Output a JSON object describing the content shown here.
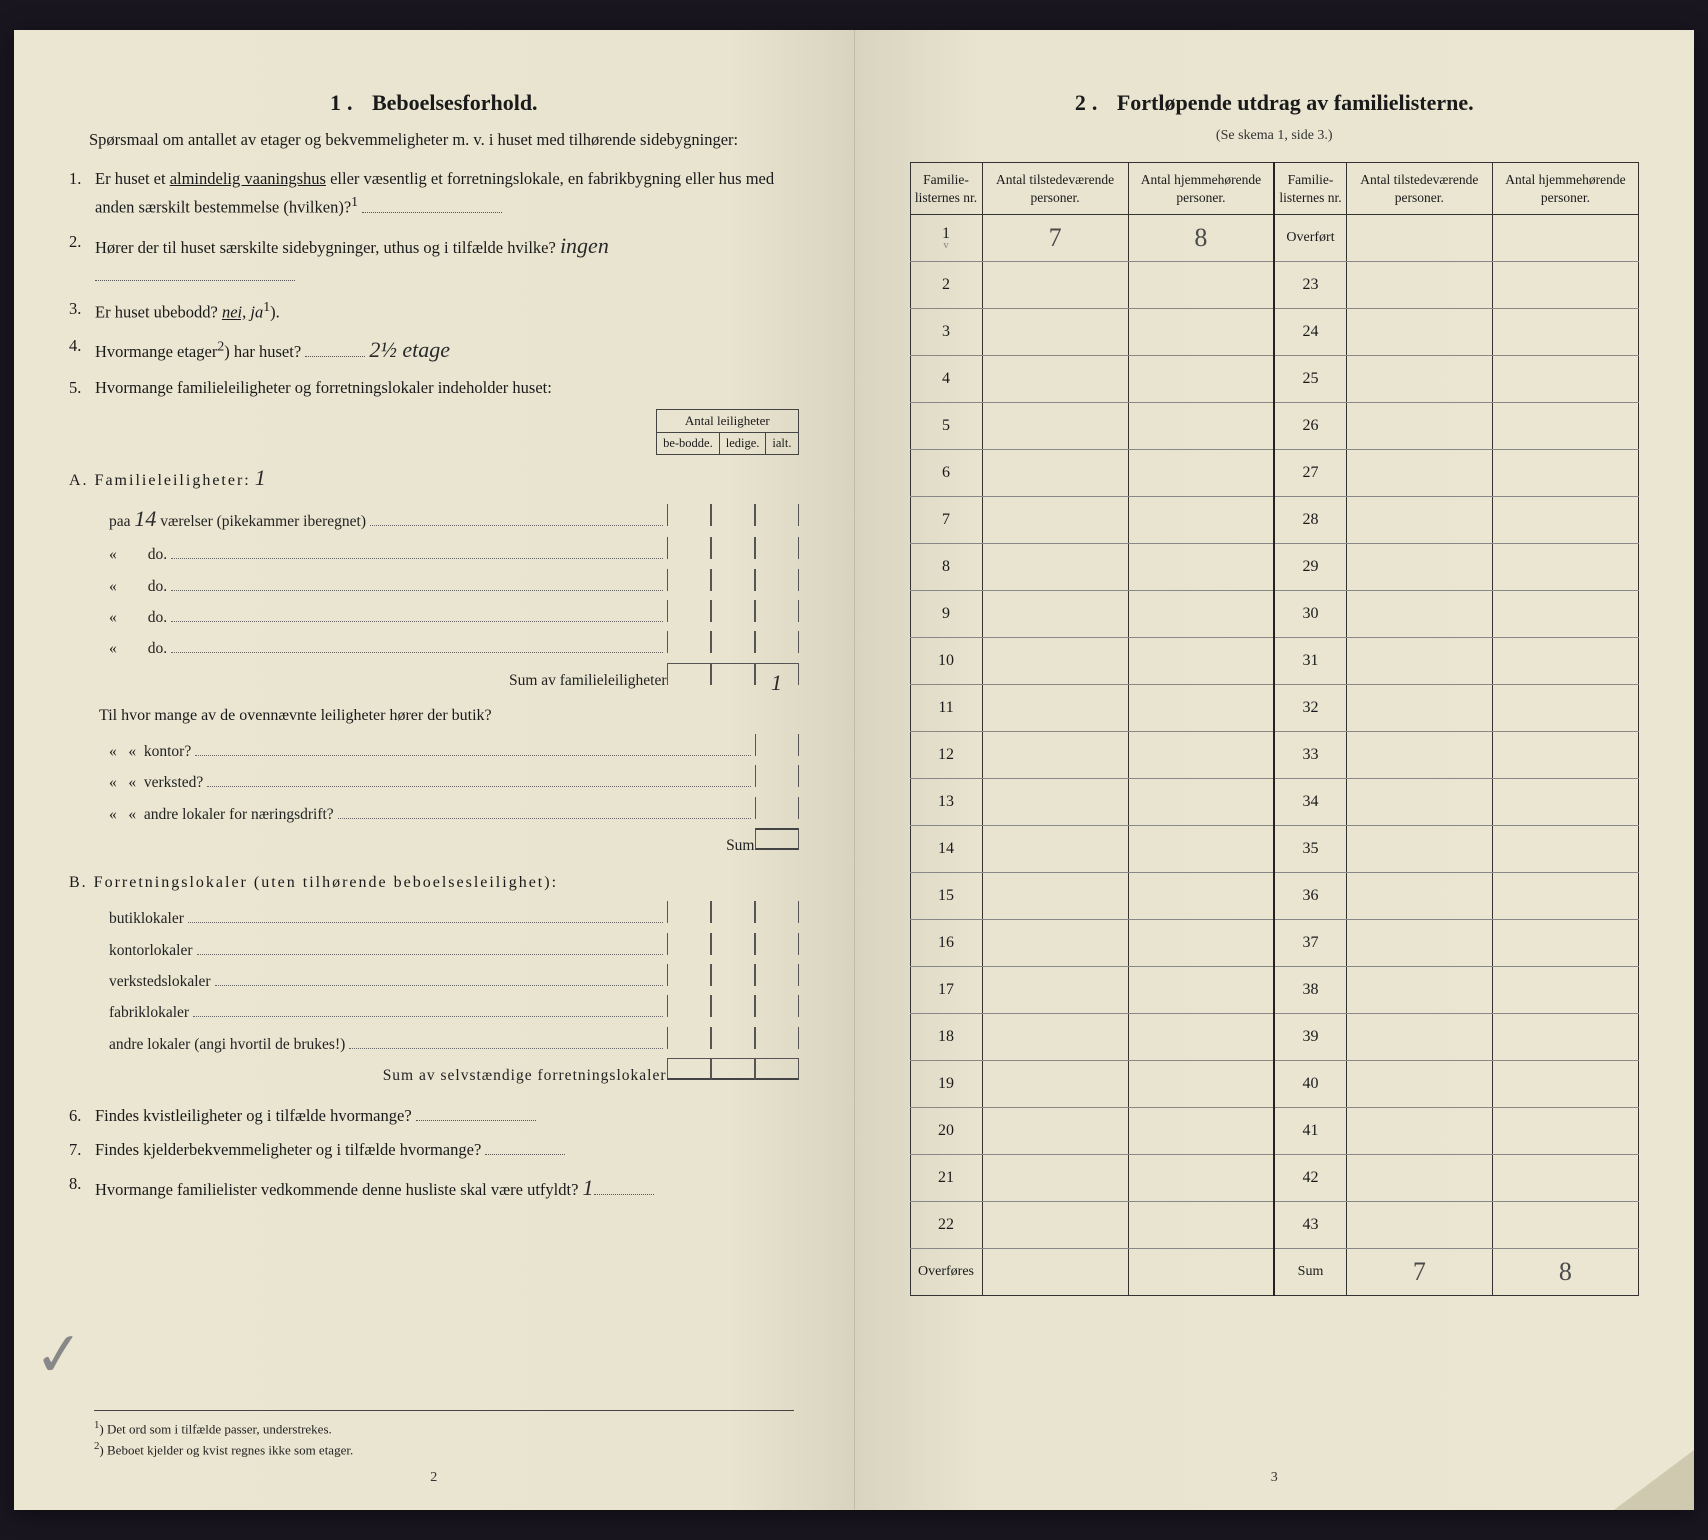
{
  "left": {
    "title_num": "1.",
    "title": "Beboelsesforhold.",
    "intro": "Spørsmaal om antallet av etager og bekvemmeligheter m. v. i huset med tilhørende sidebygninger:",
    "q1_num": "1.",
    "q1_a": "Er huset et ",
    "q1_u": "almindelig vaaningshus",
    "q1_b": " eller væsentlig et forretningslokale, en fabrikbygning eller hus med anden særskilt bestemmelse (hvilken)?",
    "q1_sup": "1",
    "q2_num": "2.",
    "q2": "Hører der til huset særskilte sidebygninger, uthus og i tilfælde hvilke?",
    "q2_ans": "ingen",
    "q3_num": "3.",
    "q3": "Er huset ubebodd?",
    "q3_nei": "nei,",
    "q3_ja": "ja",
    "q3_sup": "1",
    "q4_num": "4.",
    "q4": "Hvormange etager",
    "q4_sup": "2",
    "q4_b": ") har huset?",
    "q4_ans": "2½ etage",
    "q5_num": "5.",
    "q5": "Hvormange familieleiligheter og forretningslokaler indeholder huset:",
    "mini_hdr": "Antal leiligheter",
    "mini_c1": "be-bodde.",
    "mini_c2": "ledige.",
    "mini_c3": "ialt.",
    "A_label": "A. Familieleiligheter:",
    "A_count": "1",
    "A_row1_a": "paa",
    "A_row1_rooms": "14",
    "A_row1_b": "værelser (pikekammer iberegnet)",
    "A_do": "do.",
    "A_sum": "Sum av familieleiligheter",
    "A_sum_val": "1",
    "A_q": "Til hvor mange av de ovennævnte leiligheter hører der butik?",
    "A_q2": "kontor?",
    "A_q3": "verksted?",
    "A_q4": "andre lokaler for næringsdrift?",
    "A_sum2": "Sum",
    "B_label": "B. Forretningslokaler (uten tilhørende beboelsesleilighet):",
    "B_1": "butiklokaler",
    "B_2": "kontorlokaler",
    "B_3": "verkstedslokaler",
    "B_4": "fabriklokaler",
    "B_5": "andre lokaler (angi hvortil de brukes!)",
    "B_sum": "Sum av selvstændige forretningslokaler",
    "q6_num": "6.",
    "q6": "Findes kvistleiligheter og i tilfælde hvormange?",
    "q7_num": "7.",
    "q7": "Findes kjelderbekvemmeligheter og i tilfælde hvormange?",
    "q8_num": "8.",
    "q8": "Hvormange familielister vedkommende denne husliste skal være utfyldt?",
    "q8_ans": "1",
    "fn1_sup": "1",
    "fn1": ") Det ord som i tilfælde passer, understrekes.",
    "fn2_sup": "2",
    "fn2": ") Beboet kjelder og kvist regnes ikke som etager.",
    "page_num": "2"
  },
  "right": {
    "title_num": "2.",
    "title": "Fortløpende utdrag av familielisterne.",
    "subnote": "(Se skema 1, side 3.)",
    "hdr1": "Familie-listernes nr.",
    "hdr2": "Antal tilstedeværende personer.",
    "hdr3": "Antal hjemmehørende personer.",
    "overfort": "Overført",
    "overfores": "Overføres",
    "sum": "Sum",
    "row1_val1": "7",
    "row1_val2": "8",
    "sum_val1": "7",
    "sum_val2": "8",
    "left_nums": [
      "1",
      "2",
      "3",
      "4",
      "5",
      "6",
      "7",
      "8",
      "9",
      "10",
      "11",
      "12",
      "13",
      "14",
      "15",
      "16",
      "17",
      "18",
      "19",
      "20",
      "21",
      "22"
    ],
    "right_nums": [
      "23",
      "24",
      "25",
      "26",
      "27",
      "28",
      "29",
      "30",
      "31",
      "32",
      "33",
      "34",
      "35",
      "36",
      "37",
      "38",
      "39",
      "40",
      "41",
      "42",
      "43"
    ],
    "page_num": "3"
  }
}
